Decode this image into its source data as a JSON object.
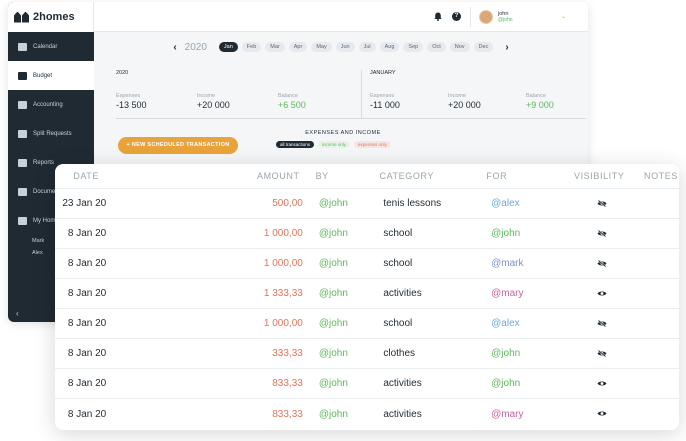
{
  "app": {
    "logo_text": "2homes",
    "user": {
      "name": "john",
      "handle": "@john"
    }
  },
  "sidebar": {
    "items": [
      {
        "label": "Calendar",
        "icon": "calendar-icon",
        "active": false
      },
      {
        "label": "Budget",
        "icon": "budget-icon",
        "active": true
      },
      {
        "label": "Accounting",
        "icon": "accounting-icon",
        "active": false
      },
      {
        "label": "Split Requests",
        "icon": "split-icon",
        "active": false
      },
      {
        "label": "Reports",
        "icon": "pie-chart-icon",
        "active": false
      },
      {
        "label": "Documents",
        "icon": "documents-icon",
        "active": false
      },
      {
        "label": "My Home",
        "icon": "home-icon",
        "active": false
      }
    ],
    "sub_items": [
      "Mark",
      "Alex"
    ],
    "collapse": "‹"
  },
  "monthbar": {
    "year": "2020",
    "prev": "‹",
    "next": "›",
    "months": [
      "Jan",
      "Feb",
      "Mar",
      "Apr",
      "May",
      "Jun",
      "Jul",
      "Aug",
      "Sep",
      "Oct",
      "Nov",
      "Dec"
    ],
    "selected": "Jan"
  },
  "summary": {
    "year": {
      "title": "2020",
      "expenses_label": "Expenses",
      "expenses": "-13 500",
      "income_label": "Income",
      "income": "+20 000",
      "balance_label": "Balance",
      "balance": "+6 500"
    },
    "month": {
      "title": "JANUARY",
      "expenses_label": "Expenses",
      "expenses": "-11 000",
      "income_label": "Income",
      "income": "+20 000",
      "balance_label": "Balance",
      "balance": "+9 000"
    }
  },
  "actions": {
    "new_button": "+ NEW SCHEDULED TRANSACTION",
    "filters_title": "EXPENSES AND INCOME",
    "filters": [
      "all transactions",
      "income only",
      "expenses only"
    ]
  },
  "table": {
    "headers": {
      "date": "DATE",
      "amount": "AMOUNT",
      "by": "BY",
      "category": "CATEGORY",
      "for": "FOR",
      "visibility": "VISIBILITY",
      "notes": "NOTES"
    },
    "rows": [
      {
        "date": "23 Jan 20",
        "amount": "500,00",
        "by": "@john",
        "category": "tenis lessons",
        "for": "@alex",
        "for_color": "#6fa8dc",
        "visibility": "hidden"
      },
      {
        "date": "8 Jan 20",
        "amount": "1 000,00",
        "by": "@john",
        "category": "school",
        "for": "@john",
        "for_color": "#5cb85c",
        "visibility": "hidden"
      },
      {
        "date": "8 Jan 20",
        "amount": "1 000,00",
        "by": "@john",
        "category": "school",
        "for": "@mark",
        "for_color": "#7a8fd6",
        "visibility": "hidden"
      },
      {
        "date": "8 Jan 20",
        "amount": "1 333,33",
        "by": "@john",
        "category": "activities",
        "for": "@mary",
        "for_color": "#c5639d",
        "visibility": "visible"
      },
      {
        "date": "8 Jan 20",
        "amount": "1 000,00",
        "by": "@john",
        "category": "school",
        "for": "@alex",
        "for_color": "#6fa8dc",
        "visibility": "hidden"
      },
      {
        "date": "8 Jan 20",
        "amount": "333,33",
        "by": "@john",
        "category": "clothes",
        "for": "@john",
        "for_color": "#5cb85c",
        "visibility": "hidden"
      },
      {
        "date": "8 Jan 20",
        "amount": "833,33",
        "by": "@john",
        "category": "activities",
        "for": "@john",
        "for_color": "#5cb85c",
        "visibility": "visible"
      },
      {
        "date": "8 Jan 20",
        "amount": "833,33",
        "by": "@john",
        "category": "activities",
        "for": "@mary",
        "for_color": "#c5639d",
        "visibility": "visible"
      }
    ]
  },
  "colors": {
    "accent": "#e8a43a",
    "sidebar": "#1f2a33",
    "expense": "#e4735a",
    "income": "#5cb85c"
  }
}
